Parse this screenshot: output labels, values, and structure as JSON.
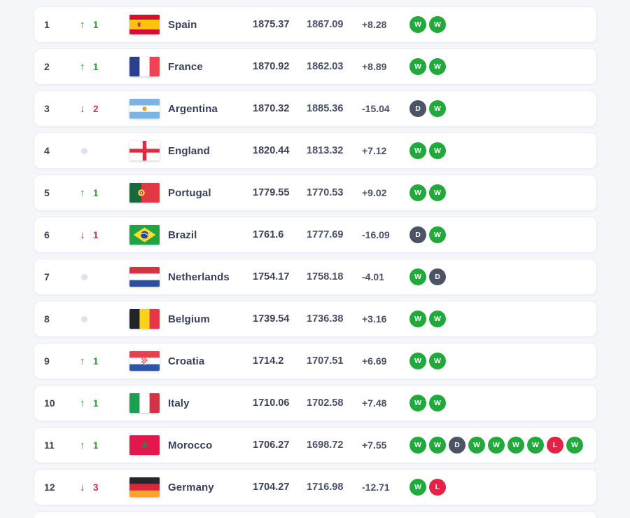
{
  "page": {
    "background": "#f5f6fa"
  },
  "colors": {
    "card_bg": "#ffffff",
    "card_border": "#e9ecf3",
    "text_primary": "#3c4257",
    "text_secondary": "#4a5168",
    "up_green": "#17a63a",
    "down_red": "#e02540",
    "no_change_dot": "#dce3ee",
    "win": "#21a93c",
    "draw": "#4b5365",
    "loss": "#e32345"
  },
  "table": {
    "rows": [
      {
        "rank": "1",
        "movement": {
          "direction": "up",
          "value": "1"
        },
        "country": "Spain",
        "flag": "spain",
        "points": "1875.37",
        "prev_points": "1867.09",
        "change": "+8.28",
        "form": [
          "W",
          "W"
        ]
      },
      {
        "rank": "2",
        "movement": {
          "direction": "up",
          "value": "1"
        },
        "country": "France",
        "flag": "france",
        "points": "1870.92",
        "prev_points": "1862.03",
        "change": "+8.89",
        "form": [
          "W",
          "W"
        ]
      },
      {
        "rank": "3",
        "movement": {
          "direction": "down",
          "value": "2"
        },
        "country": "Argentina",
        "flag": "argentina",
        "points": "1870.32",
        "prev_points": "1885.36",
        "change": "-15.04",
        "form": [
          "D",
          "W"
        ]
      },
      {
        "rank": "4",
        "movement": {
          "direction": "none",
          "value": ""
        },
        "country": "England",
        "flag": "england",
        "points": "1820.44",
        "prev_points": "1813.32",
        "change": "+7.12",
        "form": [
          "W",
          "W"
        ]
      },
      {
        "rank": "5",
        "movement": {
          "direction": "up",
          "value": "1"
        },
        "country": "Portugal",
        "flag": "portugal",
        "points": "1779.55",
        "prev_points": "1770.53",
        "change": "+9.02",
        "form": [
          "W",
          "W"
        ]
      },
      {
        "rank": "6",
        "movement": {
          "direction": "down",
          "value": "1"
        },
        "country": "Brazil",
        "flag": "brazil",
        "points": "1761.6",
        "prev_points": "1777.69",
        "change": "-16.09",
        "form": [
          "D",
          "W"
        ]
      },
      {
        "rank": "7",
        "movement": {
          "direction": "none",
          "value": ""
        },
        "country": "Netherlands",
        "flag": "netherlands",
        "points": "1754.17",
        "prev_points": "1758.18",
        "change": "-4.01",
        "form": [
          "W",
          "D"
        ]
      },
      {
        "rank": "8",
        "movement": {
          "direction": "none",
          "value": ""
        },
        "country": "Belgium",
        "flag": "belgium",
        "points": "1739.54",
        "prev_points": "1736.38",
        "change": "+3.16",
        "form": [
          "W",
          "W"
        ]
      },
      {
        "rank": "9",
        "movement": {
          "direction": "up",
          "value": "1"
        },
        "country": "Croatia",
        "flag": "croatia",
        "points": "1714.2",
        "prev_points": "1707.51",
        "change": "+6.69",
        "form": [
          "W",
          "W"
        ]
      },
      {
        "rank": "10",
        "movement": {
          "direction": "up",
          "value": "1"
        },
        "country": "Italy",
        "flag": "italy",
        "points": "1710.06",
        "prev_points": "1702.58",
        "change": "+7.48",
        "form": [
          "W",
          "W"
        ]
      },
      {
        "rank": "11",
        "movement": {
          "direction": "up",
          "value": "1"
        },
        "country": "Morocco",
        "flag": "morocco",
        "points": "1706.27",
        "prev_points": "1698.72",
        "change": "+7.55",
        "form": [
          "W",
          "W",
          "D",
          "W",
          "W",
          "W",
          "W",
          "L",
          "W"
        ]
      },
      {
        "rank": "12",
        "movement": {
          "direction": "down",
          "value": "3"
        },
        "country": "Germany",
        "flag": "germany",
        "points": "1704.27",
        "prev_points": "1716.98",
        "change": "-12.71",
        "form": [
          "W",
          "L"
        ]
      }
    ]
  }
}
